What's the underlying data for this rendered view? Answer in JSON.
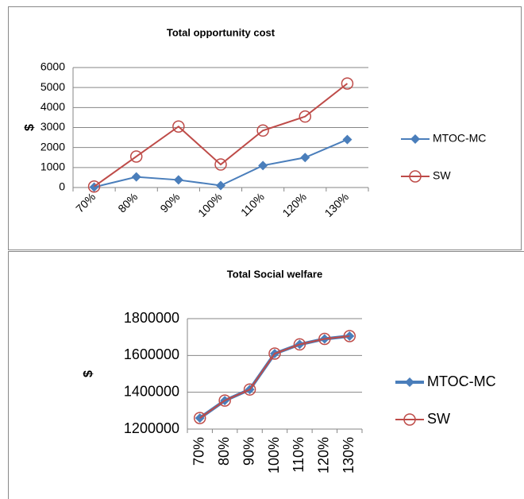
{
  "chart_data": [
    {
      "type": "line",
      "title": "Total opportunity cost",
      "ylabel": "$",
      "categories": [
        "70%",
        "80%",
        "90%",
        "100%",
        "110%",
        "120%",
        "130%"
      ],
      "series": [
        {
          "name": "MTOC-MC",
          "color": "#4a7ebb",
          "marker": "diamond",
          "values": [
            20,
            530,
            380,
            100,
            1100,
            1500,
            2400
          ]
        },
        {
          "name": "SW",
          "color": "#be4b48",
          "marker": "circle",
          "values": [
            50,
            1550,
            3050,
            1150,
            2850,
            3550,
            5200
          ]
        }
      ],
      "ylim": [
        0,
        6000
      ],
      "yticks": [
        0,
        1000,
        2000,
        3000,
        4000,
        5000,
        6000
      ],
      "grid": true,
      "legend": "right"
    },
    {
      "type": "line",
      "title": "Total Social welfare",
      "ylabel": "$",
      "categories": [
        "70%",
        "80%",
        "90%",
        "100%",
        "110%",
        "120%",
        "130%"
      ],
      "series": [
        {
          "name": "MTOC-MC",
          "color": "#4a7ebb",
          "marker": "diamond",
          "values": [
            1260000,
            1355000,
            1415000,
            1610000,
            1660000,
            1690000,
            1705000
          ]
        },
        {
          "name": "SW",
          "color": "#be4b48",
          "marker": "circle",
          "values": [
            1260000,
            1355000,
            1415000,
            1610000,
            1660000,
            1690000,
            1705000
          ]
        }
      ],
      "ylim": [
        1200000,
        1800000
      ],
      "yticks": [
        1200000,
        1400000,
        1600000,
        1800000
      ],
      "grid": true,
      "legend": "right"
    }
  ]
}
